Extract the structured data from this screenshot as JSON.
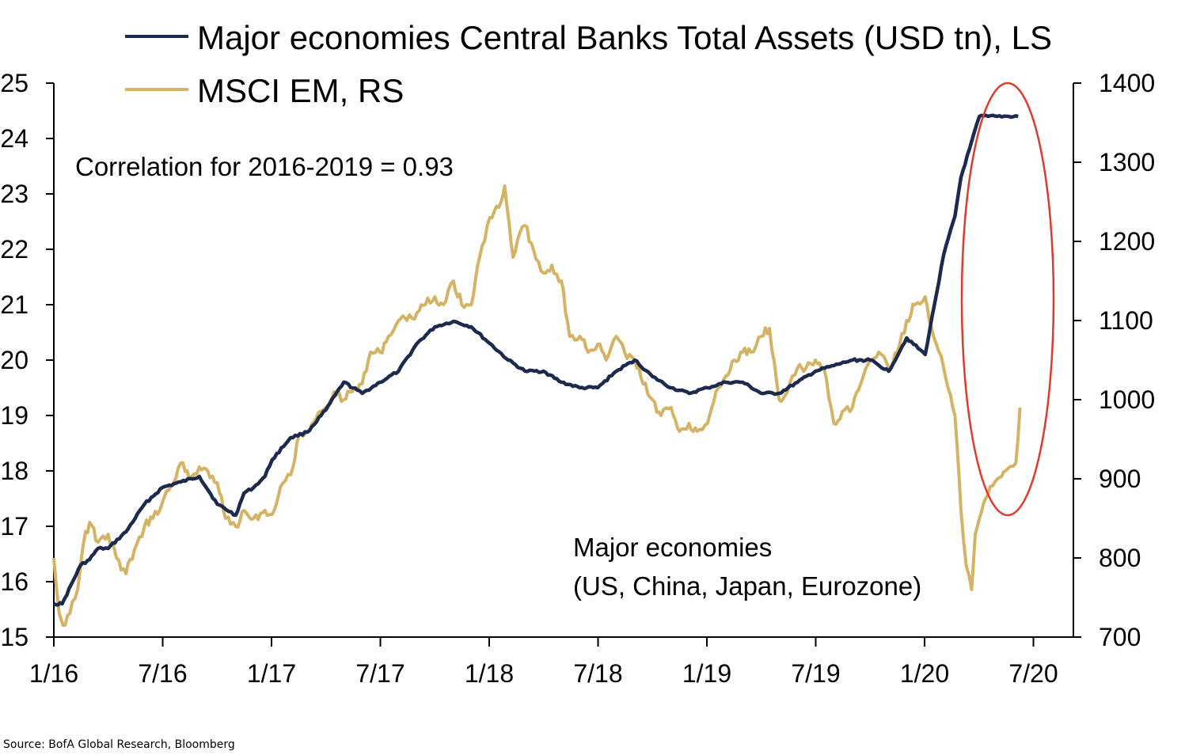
{
  "chart_data": {
    "type": "line",
    "title": "",
    "xlabel": "",
    "ylabel": "",
    "x_ticks": [
      "1/16",
      "7/16",
      "1/17",
      "7/17",
      "1/18",
      "7/18",
      "1/19",
      "7/19",
      "1/20",
      "7/20"
    ],
    "y_left": {
      "min": 15,
      "max": 25,
      "ticks": [
        "15",
        "16",
        "17",
        "18",
        "19",
        "20",
        "21",
        "22",
        "23",
        "24",
        "25"
      ]
    },
    "y_right": {
      "min": 700,
      "max": 1400,
      "ticks": [
        "700",
        "800",
        "900",
        "1000",
        "1100",
        "1200",
        "1300",
        "1400"
      ]
    },
    "series": [
      {
        "name": "Major economies Central Banks Total Assets (USD tn), LS",
        "axis": "left",
        "color": "#1b2a4e",
        "x": [
          "2016-01-01",
          "2016-01-15",
          "2016-02-15",
          "2016-03-01",
          "2016-03-15",
          "2016-04-01",
          "2016-05-01",
          "2016-06-01",
          "2016-07-01",
          "2016-08-01",
          "2016-09-01",
          "2016-10-01",
          "2016-11-01",
          "2016-11-15",
          "2016-12-01",
          "2016-12-20",
          "2017-01-01",
          "2017-02-01",
          "2017-03-01",
          "2017-04-01",
          "2017-05-01",
          "2017-06-01",
          "2017-07-01",
          "2017-08-01",
          "2017-09-01",
          "2017-10-01",
          "2017-11-01",
          "2017-12-01",
          "2018-01-01",
          "2018-02-01",
          "2018-03-01",
          "2018-04-01",
          "2018-05-01",
          "2018-06-01",
          "2018-07-01",
          "2018-08-01",
          "2018-09-01",
          "2018-10-01",
          "2018-11-01",
          "2018-12-01",
          "2019-01-01",
          "2019-02-01",
          "2019-03-01",
          "2019-04-01",
          "2019-05-01",
          "2019-06-01",
          "2019-07-01",
          "2019-08-01",
          "2019-09-01",
          "2019-10-01",
          "2019-11-01",
          "2019-12-01",
          "2020-01-01",
          "2020-02-01",
          "2020-02-20",
          "2020-03-01",
          "2020-03-15",
          "2020-04-01",
          "2020-04-15",
          "2020-05-01",
          "2020-05-20",
          "2020-06-05"
        ],
        "values": [
          15.6,
          15.6,
          16.3,
          16.4,
          16.6,
          16.6,
          16.9,
          17.4,
          17.7,
          17.8,
          17.9,
          17.4,
          17.2,
          17.6,
          17.7,
          17.9,
          18.2,
          18.6,
          18.7,
          19.1,
          19.6,
          19.4,
          19.6,
          19.8,
          20.3,
          20.6,
          20.7,
          20.6,
          20.3,
          20.0,
          19.8,
          19.8,
          19.6,
          19.5,
          19.5,
          19.8,
          20.0,
          19.7,
          19.5,
          19.4,
          19.5,
          19.6,
          19.6,
          19.4,
          19.4,
          19.6,
          19.8,
          19.9,
          20.0,
          20.0,
          19.8,
          20.4,
          20.1,
          21.9,
          22.6,
          23.3,
          23.8,
          24.4,
          24.4,
          24.4,
          24.4,
          24.4
        ]
      },
      {
        "name": "MSCI EM, RS",
        "axis": "right",
        "color": "#d4b464",
        "x": [
          "2016-01-01",
          "2016-01-10",
          "2016-01-20",
          "2016-02-01",
          "2016-02-10",
          "2016-02-20",
          "2016-03-01",
          "2016-03-15",
          "2016-04-01",
          "2016-04-15",
          "2016-05-01",
          "2016-05-15",
          "2016-06-01",
          "2016-06-15",
          "2016-07-01",
          "2016-07-15",
          "2016-08-01",
          "2016-08-15",
          "2016-09-01",
          "2016-09-15",
          "2016-10-01",
          "2016-10-15",
          "2016-11-01",
          "2016-11-15",
          "2016-12-01",
          "2016-12-20",
          "2017-01-01",
          "2017-01-15",
          "2017-02-01",
          "2017-02-15",
          "2017-03-01",
          "2017-03-15",
          "2017-04-01",
          "2017-04-15",
          "2017-05-01",
          "2017-05-15",
          "2017-06-01",
          "2017-06-15",
          "2017-07-01",
          "2017-07-15",
          "2017-08-01",
          "2017-08-15",
          "2017-09-01",
          "2017-09-15",
          "2017-10-01",
          "2017-10-15",
          "2017-11-01",
          "2017-11-15",
          "2017-12-01",
          "2017-12-15",
          "2018-01-01",
          "2018-01-20",
          "2018-01-26",
          "2018-02-09",
          "2018-02-20",
          "2018-03-01",
          "2018-03-15",
          "2018-04-01",
          "2018-04-15",
          "2018-05-01",
          "2018-05-15",
          "2018-06-01",
          "2018-06-15",
          "2018-07-01",
          "2018-07-15",
          "2018-08-01",
          "2018-08-15",
          "2018-09-01",
          "2018-09-15",
          "2018-10-01",
          "2018-10-15",
          "2018-11-01",
          "2018-11-15",
          "2018-12-01",
          "2018-12-15",
          "2019-01-01",
          "2019-01-15",
          "2019-02-01",
          "2019-02-15",
          "2019-03-01",
          "2019-03-15",
          "2019-04-01",
          "2019-04-15",
          "2019-05-01",
          "2019-05-15",
          "2019-06-01",
          "2019-06-15",
          "2019-07-01",
          "2019-07-15",
          "2019-08-01",
          "2019-08-15",
          "2019-09-01",
          "2019-09-15",
          "2019-10-01",
          "2019-10-15",
          "2019-11-01",
          "2019-11-15",
          "2019-12-01",
          "2019-12-15",
          "2020-01-01",
          "2020-01-15",
          "2020-02-01",
          "2020-02-20",
          "2020-03-01",
          "2020-03-10",
          "2020-03-19",
          "2020-03-25",
          "2020-04-01",
          "2020-04-15",
          "2020-05-01",
          "2020-05-15",
          "2020-06-01",
          "2020-06-08"
        ],
        "values": [
          800,
          730,
          715,
          745,
          760,
          820,
          845,
          820,
          830,
          800,
          780,
          810,
          840,
          850,
          870,
          890,
          920,
          900,
          915,
          910,
          895,
          850,
          840,
          860,
          850,
          860,
          855,
          890,
          905,
          955,
          960,
          975,
          990,
          1010,
          1000,
          1010,
          1020,
          1060,
          1060,
          1080,
          1100,
          1100,
          1110,
          1120,
          1130,
          1120,
          1150,
          1120,
          1120,
          1180,
          1230,
          1250,
          1270,
          1180,
          1210,
          1220,
          1190,
          1160,
          1170,
          1150,
          1080,
          1080,
          1060,
          1070,
          1050,
          1080,
          1060,
          1050,
          1020,
          1000,
          980,
          990,
          960,
          970,
          960,
          970,
          1010,
          1030,
          1050,
          1060,
          1060,
          1080,
          1090,
          1000,
          1010,
          1040,
          1040,
          1050,
          1040,
          970,
          985,
          990,
          1020,
          1050,
          1060,
          1040,
          1060,
          1100,
          1120,
          1130,
          1080,
          1040,
          980,
          860,
          790,
          760,
          830,
          850,
          880,
          900,
          910,
          920,
          990
        ]
      }
    ],
    "legend": "top",
    "grid": false,
    "annotations": {
      "correlation": "Correlation for 2016-2019 = 0.93",
      "major_line1": "Major economies",
      "major_line2": "(US, China, Japan, Eurozone)",
      "highlight": "red ellipse around 2020 surge"
    },
    "source": "Source: BofA Global Research, Bloomberg"
  }
}
